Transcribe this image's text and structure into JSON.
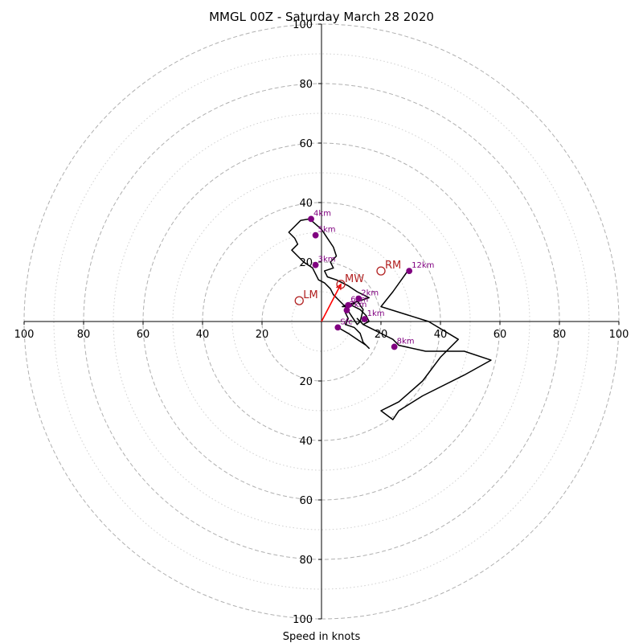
{
  "chart_data": {
    "type": "hodograph",
    "title": "MMGL 00Z - Saturday March 28 2020",
    "xlabel": "Speed in knots",
    "ylabel": "",
    "range": [
      -100,
      100
    ],
    "ring_values": [
      20,
      40,
      60,
      80,
      100
    ],
    "tick_labels": {
      "x": [
        "100",
        "80",
        "60",
        "40",
        "20",
        "20",
        "40",
        "60",
        "80",
        "100"
      ],
      "y": [
        "100",
        "80",
        "60",
        "40",
        "20",
        "20",
        "40",
        "60",
        "80",
        "100"
      ]
    },
    "grid": true,
    "colors": {
      "trace": "#000000",
      "heights": "#800080",
      "storm_motion": "#b22222",
      "mean_wind_vector": "#ff0000",
      "grid": "#b0b0b0"
    },
    "trace": {
      "u": [
        5.5,
        9,
        12,
        15,
        16,
        14,
        13,
        11,
        8,
        9,
        8,
        9,
        11,
        12,
        14,
        13,
        12,
        10,
        8,
        6,
        4,
        3,
        1,
        -1,
        -2,
        -3,
        -6,
        -8,
        -10,
        -8,
        -9,
        -11,
        -9,
        -7,
        -4,
        0,
        2,
        4,
        5,
        3,
        4,
        1,
        2,
        5,
        9,
        12,
        14,
        16,
        13,
        10,
        8,
        7,
        9,
        11,
        13,
        14,
        15,
        16,
        14,
        13,
        12,
        13,
        14,
        18,
        22,
        24,
        26,
        35,
        48,
        57,
        48,
        34,
        26,
        24,
        20,
        26,
        34,
        40,
        46,
        36,
        20,
        24,
        29
      ],
      "v": [
        -2,
        -4,
        -6,
        -8,
        -9,
        -7,
        -4,
        -2,
        -1,
        1,
        3,
        5,
        6,
        7,
        4,
        0,
        -1,
        2,
        5,
        7,
        9,
        11,
        13,
        14,
        16,
        18,
        20,
        22,
        24,
        26,
        28,
        30,
        32,
        34,
        34.5,
        31,
        28,
        25,
        22,
        20,
        18,
        17,
        15,
        14,
        12,
        10,
        9,
        8,
        7,
        6,
        5,
        5,
        6,
        5,
        4,
        3,
        2,
        0,
        -1,
        0,
        1,
        0,
        -1,
        -3,
        -5,
        -6,
        -8,
        -10,
        -10,
        -13,
        -18,
        -25,
        -30,
        -33,
        -30,
        -27,
        -20,
        -12,
        -6,
        0,
        5,
        10,
        17
      ]
    },
    "height_labels": [
      {
        "label": "Sfc",
        "u": 5.5,
        "v": -2
      },
      {
        "label": "1km",
        "u": 14.5,
        "v": 0.8
      },
      {
        "label": "2km",
        "u": 12.5,
        "v": 7.7
      },
      {
        "label": "3km",
        "u": -2,
        "v": 19
      },
      {
        "label": "4km",
        "u": -3.5,
        "v": 34.5
      },
      {
        "label": "5km",
        "u": -2,
        "v": 29
      },
      {
        "label": "6km",
        "u": 9,
        "v": 5.5
      },
      {
        "label": "7km",
        "u": 8.5,
        "v": 3.8
      },
      {
        "label": "8km",
        "u": 24.5,
        "v": -8.5
      },
      {
        "label": "12km",
        "u": 29.5,
        "v": 17
      }
    ],
    "storm_motion": [
      {
        "label": "RM",
        "u": 20,
        "v": 17
      },
      {
        "label": "LM",
        "u": -7.5,
        "v": 7
      },
      {
        "label": "MW",
        "u": 6.5,
        "v": 12.5
      }
    ],
    "mean_wind_vector": {
      "u": 6.5,
      "v": 12.5
    }
  }
}
